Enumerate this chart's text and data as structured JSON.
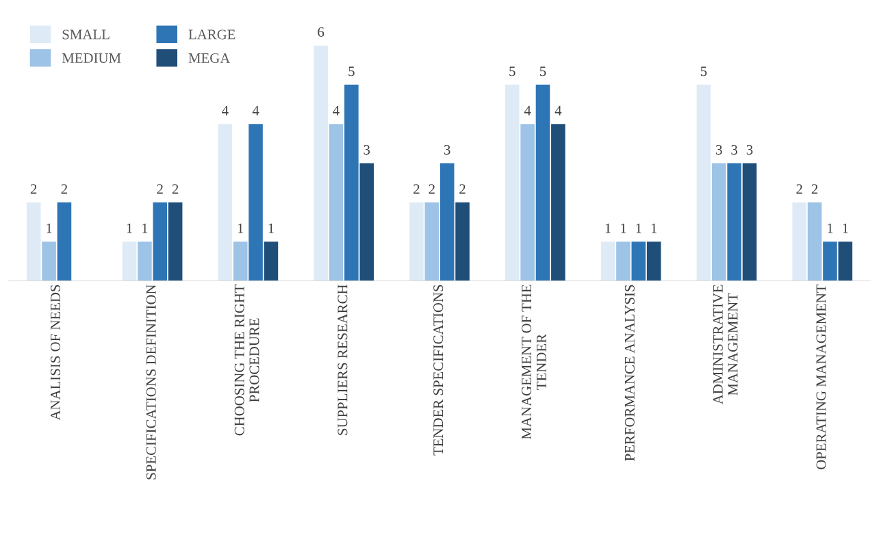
{
  "chart_data": {
    "type": "bar",
    "categories": [
      "ANALISIS OF NEEDS",
      "SPECIFICATIONS DEFINITION",
      "CHOOSING THE RIGHT\nPROCEDURE",
      "SUPPLIERS RESEARCH",
      "TENDER SPECIFICATIONS",
      "MANAGEMENT OF THE\nTENDER",
      "PERFORMANCE ANALYSIS",
      "ADMINISTRATIVE\nMANAGEMENT",
      "OPERATING MANAGEMENT"
    ],
    "series": [
      {
        "name": "SMALL",
        "color": "#deebf7",
        "values": [
          2,
          1,
          4,
          6,
          2,
          5,
          1,
          5,
          2
        ]
      },
      {
        "name": "MEDIUM",
        "color": "#9dc3e6",
        "values": [
          1,
          1,
          1,
          4,
          2,
          4,
          1,
          3,
          2
        ]
      },
      {
        "name": "LARGE",
        "color": "#2e75b6",
        "values": [
          2,
          2,
          4,
          5,
          3,
          5,
          1,
          3,
          1
        ]
      },
      {
        "name": "MEGA",
        "color": "#1f4e79",
        "values": [
          null,
          2,
          1,
          3,
          2,
          4,
          1,
          3,
          1
        ]
      }
    ],
    "data_labels": true,
    "legend": "top left",
    "grid": false,
    "tick_labels": "x"
  }
}
